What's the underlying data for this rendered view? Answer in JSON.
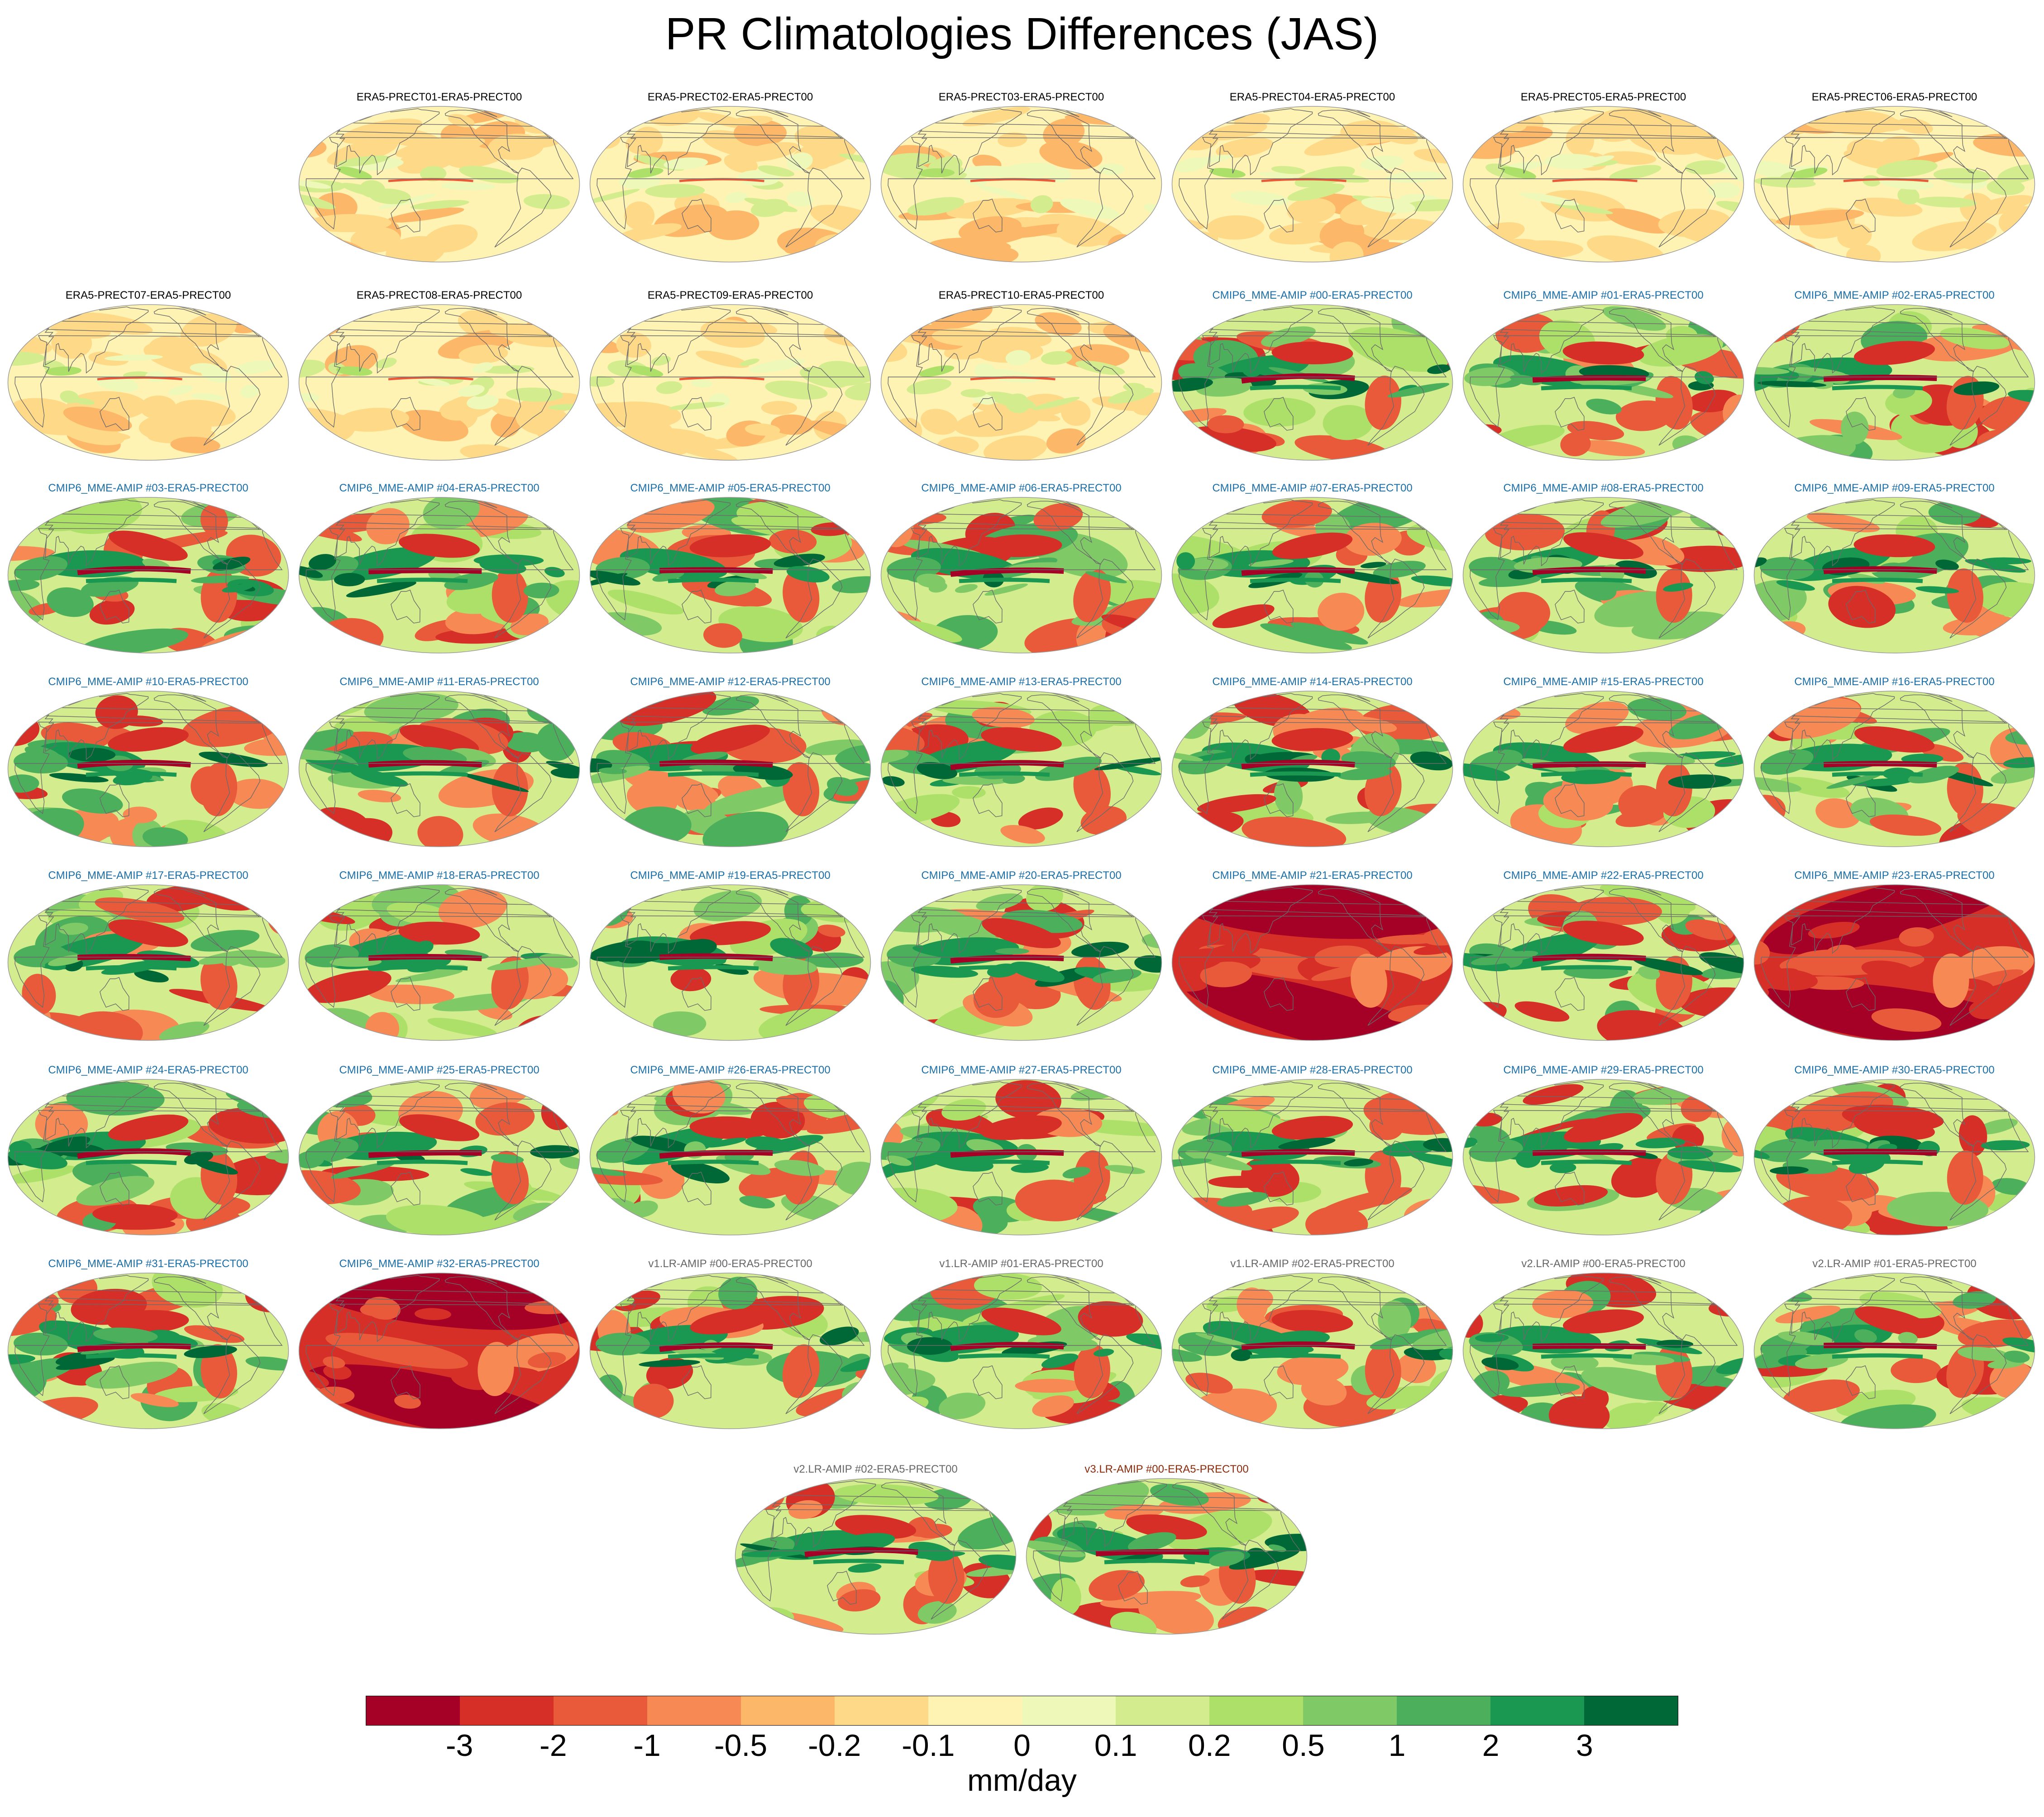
{
  "title": "PR Climatologies Differences (JAS)",
  "title_colors": {
    "ERA5": "#000000",
    "CMIP6": "#1a6ea8",
    "v1": "#666666",
    "v2": "#666666",
    "v3": "#8b2a0a"
  },
  "panels": [
    {
      "label": "ERA5-PRECT01-ERA5-PRECT00",
      "group": "ERA5",
      "intensity": 0.18
    },
    {
      "label": "ERA5-PRECT02-ERA5-PRECT00",
      "group": "ERA5",
      "intensity": 0.22
    },
    {
      "label": "ERA5-PRECT03-ERA5-PRECT00",
      "group": "ERA5",
      "intensity": 0.22
    },
    {
      "label": "ERA5-PRECT04-ERA5-PRECT00",
      "group": "ERA5",
      "intensity": 0.22
    },
    {
      "label": "ERA5-PRECT05-ERA5-PRECT00",
      "group": "ERA5",
      "intensity": 0.22
    },
    {
      "label": "ERA5-PRECT06-ERA5-PRECT00",
      "group": "ERA5",
      "intensity": 0.22
    },
    {
      "label": "ERA5-PRECT07-ERA5-PRECT00",
      "group": "ERA5",
      "intensity": 0.22
    },
    {
      "label": "ERA5-PRECT08-ERA5-PRECT00",
      "group": "ERA5",
      "intensity": 0.22
    },
    {
      "label": "ERA5-PRECT09-ERA5-PRECT00",
      "group": "ERA5",
      "intensity": 0.22
    },
    {
      "label": "ERA5-PRECT10-ERA5-PRECT00",
      "group": "ERA5",
      "intensity": 0.22
    },
    {
      "label": "CMIP6_MME-AMIP  #00-ERA5-PRECT00",
      "group": "CMIP6",
      "intensity": 1
    },
    {
      "label": "CMIP6_MME-AMIP  #01-ERA5-PRECT00",
      "group": "CMIP6",
      "intensity": 1
    },
    {
      "label": "CMIP6_MME-AMIP  #02-ERA5-PRECT00",
      "group": "CMIP6",
      "intensity": 1
    },
    {
      "label": "CMIP6_MME-AMIP  #03-ERA5-PRECT00",
      "group": "CMIP6",
      "intensity": 1
    },
    {
      "label": "CMIP6_MME-AMIP  #04-ERA5-PRECT00",
      "group": "CMIP6",
      "intensity": 1
    },
    {
      "label": "CMIP6_MME-AMIP  #05-ERA5-PRECT00",
      "group": "CMIP6",
      "intensity": 1
    },
    {
      "label": "CMIP6_MME-AMIP  #06-ERA5-PRECT00",
      "group": "CMIP6",
      "intensity": 1
    },
    {
      "label": "CMIP6_MME-AMIP  #07-ERA5-PRECT00",
      "group": "CMIP6",
      "intensity": 1
    },
    {
      "label": "CMIP6_MME-AMIP  #08-ERA5-PRECT00",
      "group": "CMIP6",
      "intensity": 1
    },
    {
      "label": "CMIP6_MME-AMIP  #09-ERA5-PRECT00",
      "group": "CMIP6",
      "intensity": 1
    },
    {
      "label": "CMIP6_MME-AMIP  #10-ERA5-PRECT00",
      "group": "CMIP6",
      "intensity": 1
    },
    {
      "label": "CMIP6_MME-AMIP  #11-ERA5-PRECT00",
      "group": "CMIP6",
      "intensity": 1
    },
    {
      "label": "CMIP6_MME-AMIP  #12-ERA5-PRECT00",
      "group": "CMIP6",
      "intensity": 1
    },
    {
      "label": "CMIP6_MME-AMIP  #13-ERA5-PRECT00",
      "group": "CMIP6",
      "intensity": 1
    },
    {
      "label": "CMIP6_MME-AMIP  #14-ERA5-PRECT00",
      "group": "CMIP6",
      "intensity": 1
    },
    {
      "label": "CMIP6_MME-AMIP  #15-ERA5-PRECT00",
      "group": "CMIP6",
      "intensity": 1
    },
    {
      "label": "CMIP6_MME-AMIP  #16-ERA5-PRECT00",
      "group": "CMIP6",
      "intensity": 1
    },
    {
      "label": "CMIP6_MME-AMIP  #17-ERA5-PRECT00",
      "group": "CMIP6",
      "intensity": 1
    },
    {
      "label": "CMIP6_MME-AMIP  #18-ERA5-PRECT00",
      "group": "CMIP6",
      "intensity": 1
    },
    {
      "label": "CMIP6_MME-AMIP  #19-ERA5-PRECT00",
      "group": "CMIP6",
      "intensity": 1
    },
    {
      "label": "CMIP6_MME-AMIP  #20-ERA5-PRECT00",
      "group": "CMIP6",
      "intensity": 1
    },
    {
      "label": "CMIP6_MME-AMIP  #21-ERA5-PRECT00",
      "group": "CMIP6",
      "intensity": 1,
      "dry": true
    },
    {
      "label": "CMIP6_MME-AMIP  #22-ERA5-PRECT00",
      "group": "CMIP6",
      "intensity": 1
    },
    {
      "label": "CMIP6_MME-AMIP  #23-ERA5-PRECT00",
      "group": "CMIP6",
      "intensity": 1,
      "dry": true
    },
    {
      "label": "CMIP6_MME-AMIP  #24-ERA5-PRECT00",
      "group": "CMIP6",
      "intensity": 1
    },
    {
      "label": "CMIP6_MME-AMIP  #25-ERA5-PRECT00",
      "group": "CMIP6",
      "intensity": 1
    },
    {
      "label": "CMIP6_MME-AMIP  #26-ERA5-PRECT00",
      "group": "CMIP6",
      "intensity": 1
    },
    {
      "label": "CMIP6_MME-AMIP  #27-ERA5-PRECT00",
      "group": "CMIP6",
      "intensity": 1
    },
    {
      "label": "CMIP6_MME-AMIP  #28-ERA5-PRECT00",
      "group": "CMIP6",
      "intensity": 1
    },
    {
      "label": "CMIP6_MME-AMIP  #29-ERA5-PRECT00",
      "group": "CMIP6",
      "intensity": 1
    },
    {
      "label": "CMIP6_MME-AMIP  #30-ERA5-PRECT00",
      "group": "CMIP6",
      "intensity": 1
    },
    {
      "label": "CMIP6_MME-AMIP  #31-ERA5-PRECT00",
      "group": "CMIP6",
      "intensity": 1
    },
    {
      "label": "CMIP6_MME-AMIP  #32-ERA5-PRECT00",
      "group": "CMIP6",
      "intensity": 1,
      "dry": true
    },
    {
      "label": "v1.LR-AMIP  #00-ERA5-PRECT00",
      "group": "v1",
      "intensity": 1
    },
    {
      "label": "v1.LR-AMIP  #01-ERA5-PRECT00",
      "group": "v1",
      "intensity": 1
    },
    {
      "label": "v1.LR-AMIP  #02-ERA5-PRECT00",
      "group": "v1",
      "intensity": 1
    },
    {
      "label": "v2.LR-AMIP  #00-ERA5-PRECT00",
      "group": "v2",
      "intensity": 1
    },
    {
      "label": "v2.LR-AMIP  #01-ERA5-PRECT00",
      "group": "v2",
      "intensity": 1
    },
    {
      "label": "v2.LR-AMIP  #02-ERA5-PRECT00",
      "group": "v2",
      "intensity": 1
    },
    {
      "label": "v3.LR-AMIP  #00-ERA5-PRECT00",
      "group": "v3",
      "intensity": 1
    }
  ],
  "colorbar": {
    "colors": [
      "#a50026",
      "#d62f27",
      "#e85a3a",
      "#f78954",
      "#fdb768",
      "#fed988",
      "#fff3b3",
      "#eef8b8",
      "#d3ed8e",
      "#ace068",
      "#7fca66",
      "#4caf5c",
      "#1a9750",
      "#006837"
    ],
    "ticks": [
      "-3",
      "-2",
      "-1",
      "-0.5",
      "-0.2",
      "-0.1",
      "0",
      "0.1",
      "0.2",
      "0.5",
      "1",
      "2",
      "3"
    ],
    "unit": "mm/day"
  }
}
